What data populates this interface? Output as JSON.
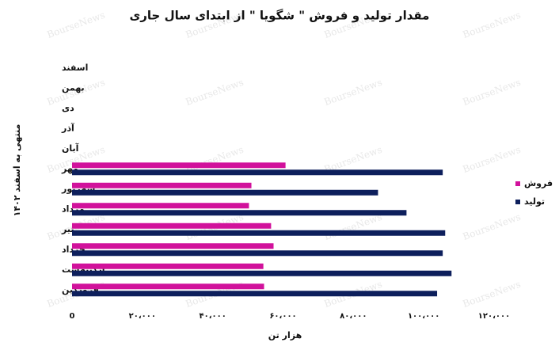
{
  "chart_data": {
    "type": "hbar",
    "title": "مقدار تولید و فروش \" شگویا \" از ابتدای سال جاری",
    "x_label": "هزار تن",
    "y_label": "منتهی به اسفند ۱۴۰۲",
    "watermark": "BourseNews",
    "categories": [
      "فروردین",
      "اردیبهشت",
      "خرداد",
      "تیر",
      "مرداد",
      "شهریور",
      "مهر",
      "آبان",
      "آذر",
      "دی",
      "بهمن",
      "اسفند"
    ],
    "series": [
      {
        "name": "فروش",
        "color": "#d1119b",
        "values": [
          54600,
          54400,
          57300,
          56600,
          50300,
          51000,
          60700,
          null,
          null,
          null,
          null,
          null
        ]
      },
      {
        "name": "تولید",
        "color": "#0d1f5c",
        "values": [
          103800,
          107900,
          105400,
          106100,
          95100,
          87000,
          105400,
          null,
          null,
          null,
          null,
          null
        ]
      }
    ],
    "xlim": [
      0,
      120000
    ],
    "xticks": [
      {
        "value": 0,
        "label": "0"
      },
      {
        "value": 20000,
        "label": "۲۰،۰۰۰"
      },
      {
        "value": 40000,
        "label": "۴۰،۰۰۰"
      },
      {
        "value": 60000,
        "label": "۶۰،۰۰۰"
      },
      {
        "value": 80000,
        "label": "۸۰،۰۰۰"
      },
      {
        "value": 100000,
        "label": "۱۰۰،۰۰۰"
      },
      {
        "value": 120000,
        "label": "۱۲۰،۰۰۰"
      }
    ],
    "legend": "right"
  }
}
